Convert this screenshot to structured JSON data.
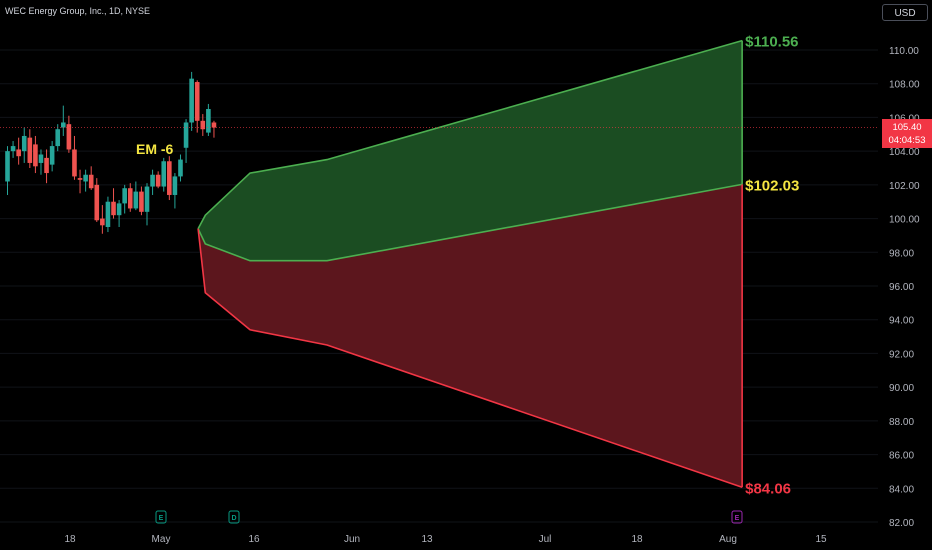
{
  "header": {
    "symbol_line": "WEC Energy Group, Inc., 1D, NYSE",
    "currency": "USD"
  },
  "last_price": {
    "price": "105.40",
    "countdown": "04:04:53",
    "value": 105.4
  },
  "chart_data": {
    "type": "candlestick",
    "yaxis": {
      "ticks": [
        "110.00",
        "108.00",
        "106.00",
        "104.00",
        "102.00",
        "100.00",
        "98.00",
        "96.00",
        "94.00",
        "92.00",
        "90.00",
        "88.00",
        "86.00",
        "84.00",
        "82.00"
      ],
      "ylim": [
        82,
        111.5
      ]
    },
    "xaxis": {
      "ticks": [
        "18",
        "May",
        "16",
        "Jun",
        "13",
        "Jul",
        "18",
        "Aug",
        "15"
      ]
    },
    "candles": [
      {
        "o": 102.2,
        "h": 104.3,
        "l": 101.4,
        "c": 104.0
      },
      {
        "o": 104.0,
        "h": 104.6,
        "l": 103.6,
        "c": 104.3
      },
      {
        "o": 104.1,
        "h": 104.8,
        "l": 103.2,
        "c": 103.7
      },
      {
        "o": 104.0,
        "h": 105.4,
        "l": 103.3,
        "c": 104.9
      },
      {
        "o": 104.8,
        "h": 105.3,
        "l": 103.0,
        "c": 103.3
      },
      {
        "o": 104.4,
        "h": 104.9,
        "l": 102.7,
        "c": 103.1
      },
      {
        "o": 103.3,
        "h": 104.1,
        "l": 102.6,
        "c": 103.8
      },
      {
        "o": 103.6,
        "h": 104.1,
        "l": 102.1,
        "c": 102.7
      },
      {
        "o": 103.2,
        "h": 104.6,
        "l": 102.8,
        "c": 104.3
      },
      {
        "o": 104.3,
        "h": 105.6,
        "l": 104.0,
        "c": 105.3
      },
      {
        "o": 105.4,
        "h": 106.7,
        "l": 104.9,
        "c": 105.7
      },
      {
        "o": 105.6,
        "h": 106.1,
        "l": 103.9,
        "c": 104.1
      },
      {
        "o": 104.1,
        "h": 104.9,
        "l": 102.3,
        "c": 102.5
      },
      {
        "o": 102.4,
        "h": 102.9,
        "l": 101.5,
        "c": 102.3
      },
      {
        "o": 102.2,
        "h": 102.9,
        "l": 101.6,
        "c": 102.6
      },
      {
        "o": 102.6,
        "h": 103.1,
        "l": 101.7,
        "c": 101.8
      },
      {
        "o": 102.0,
        "h": 102.4,
        "l": 99.8,
        "c": 99.9
      },
      {
        "o": 100.0,
        "h": 100.8,
        "l": 99.1,
        "c": 99.6
      },
      {
        "o": 99.5,
        "h": 101.3,
        "l": 99.2,
        "c": 101.0
      },
      {
        "o": 101.0,
        "h": 101.8,
        "l": 100.0,
        "c": 100.2
      },
      {
        "o": 100.2,
        "h": 101.1,
        "l": 99.5,
        "c": 100.9
      },
      {
        "o": 100.9,
        "h": 102.0,
        "l": 100.3,
        "c": 101.8
      },
      {
        "o": 101.8,
        "h": 102.1,
        "l": 100.4,
        "c": 100.6
      },
      {
        "o": 100.6,
        "h": 102.2,
        "l": 100.5,
        "c": 101.6
      },
      {
        "o": 101.6,
        "h": 101.9,
        "l": 100.2,
        "c": 100.4
      },
      {
        "o": 100.4,
        "h": 102.1,
        "l": 99.6,
        "c": 101.9
      },
      {
        "o": 101.9,
        "h": 102.9,
        "l": 101.4,
        "c": 102.6
      },
      {
        "o": 102.6,
        "h": 102.8,
        "l": 101.8,
        "c": 101.9
      },
      {
        "o": 101.9,
        "h": 103.6,
        "l": 101.6,
        "c": 103.4
      },
      {
        "o": 103.4,
        "h": 103.7,
        "l": 101.1,
        "c": 101.4
      },
      {
        "o": 101.4,
        "h": 102.7,
        "l": 100.6,
        "c": 102.5
      },
      {
        "o": 102.5,
        "h": 103.8,
        "l": 102.2,
        "c": 103.5
      },
      {
        "o": 104.2,
        "h": 105.9,
        "l": 103.3,
        "c": 105.7
      },
      {
        "o": 105.7,
        "h": 108.7,
        "l": 105.2,
        "c": 108.3
      },
      {
        "o": 108.1,
        "h": 108.2,
        "l": 105.1,
        "c": 105.8
      },
      {
        "o": 105.8,
        "h": 106.2,
        "l": 104.9,
        "c": 105.3
      },
      {
        "o": 105.1,
        "h": 106.8,
        "l": 104.9,
        "c": 106.5
      },
      {
        "o": 105.7,
        "h": 105.8,
        "l": 104.8,
        "c": 105.4
      }
    ],
    "upper_band": [
      {
        "bar": 35.5,
        "v": 99.4
      },
      {
        "bar": 36.8,
        "v": 100.2
      },
      {
        "bar": 44.8,
        "v": 102.7
      },
      {
        "bar": 58.6,
        "v": 103.5
      },
      {
        "bar": 133,
        "v": 110.56
      }
    ],
    "mid_band": [
      {
        "bar": 35.5,
        "v": 99.4
      },
      {
        "bar": 36.8,
        "v": 98.5
      },
      {
        "bar": 44.8,
        "v": 97.5
      },
      {
        "bar": 58.6,
        "v": 97.5
      },
      {
        "bar": 133,
        "v": 102.03
      }
    ],
    "lower_band": [
      {
        "bar": 35.5,
        "v": 99.4
      },
      {
        "bar": 36.8,
        "v": 95.6
      },
      {
        "bar": 44.8,
        "v": 93.4
      },
      {
        "bar": 58.6,
        "v": 92.5
      },
      {
        "bar": 133,
        "v": 84.06
      }
    ],
    "annotations": {
      "em_label": "EM -6",
      "upper_label": "$110.56",
      "mid_label": "$102.03",
      "lower_label": "$84.06"
    },
    "events": [
      {
        "letter": "E",
        "color": "#089981"
      },
      {
        "letter": "D",
        "color": "#089981"
      },
      {
        "letter": "E",
        "color": "#9c27b0"
      }
    ],
    "colors": {
      "up": "#26a69a",
      "down": "#ef5350",
      "green_fill": "#1b4d22",
      "red_fill": "#5c161d",
      "green_line": "#4caf50",
      "red_line": "#f23645",
      "yellow": "#f5e642"
    }
  }
}
